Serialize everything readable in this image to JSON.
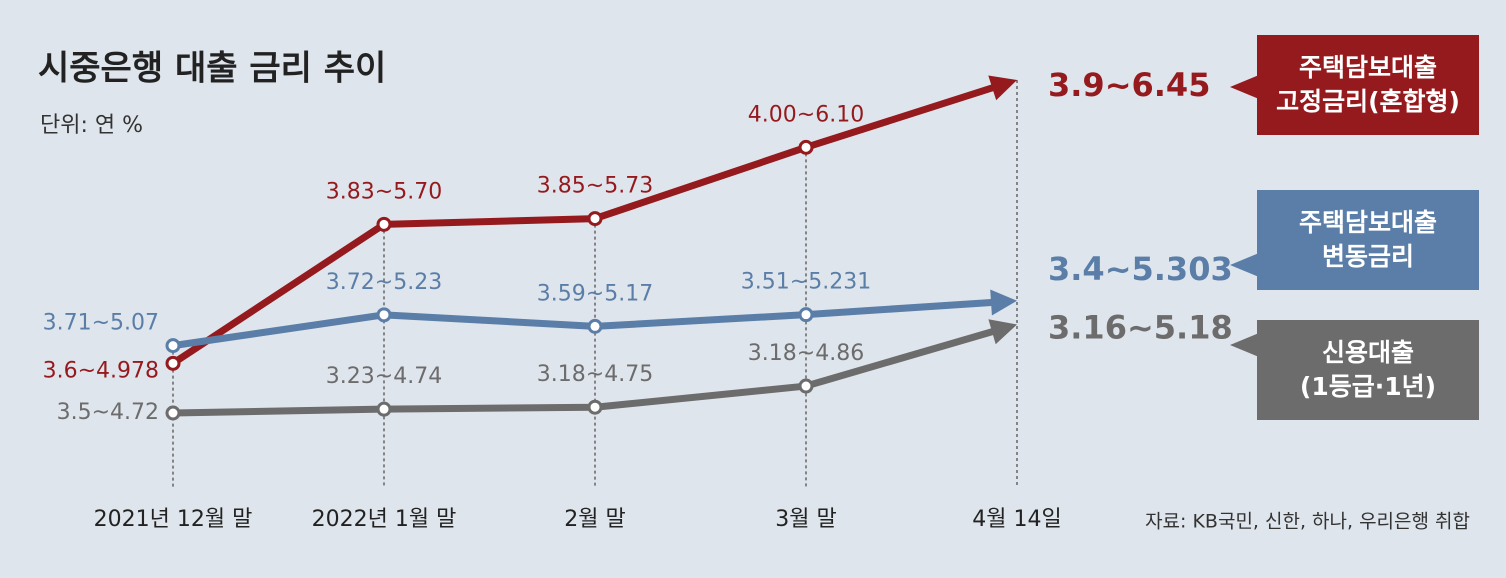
{
  "chart_data": {
    "type": "line",
    "title": "시중은행 대출 금리 추이",
    "subtitle": "단위: 연 %",
    "source": "자료: KB국민, 신한, 하나, 우리은행 취합",
    "categories": [
      "2021년 12월 말",
      "2022년 1월 말",
      "2월 말",
      "3월 말",
      "4월 14일"
    ],
    "series": [
      {
        "name": "주택담보대출\n고정금리(혼합형)",
        "color": "#951a1e",
        "values": [
          4.978,
          5.7,
          5.73,
          6.1,
          6.45
        ],
        "value_labels": [
          "3.6~4.978",
          "3.83~5.70",
          "3.85~5.73",
          "4.00~6.10",
          "3.9~6.45"
        ]
      },
      {
        "name": "주택담보대출\n변동금리",
        "color": "#5a7ea8",
        "values": [
          5.07,
          5.23,
          5.17,
          5.231,
          5.303
        ],
        "value_labels": [
          "3.71~5.07",
          "3.72~5.23",
          "3.59~5.17",
          "3.51~5.231",
          "3.4~5.303"
        ]
      },
      {
        "name": "신용대출\n(1등급·1년)",
        "color": "#6c6c6c",
        "values": [
          4.72,
          4.74,
          4.75,
          4.86,
          5.18
        ],
        "value_labels": [
          "3.5~4.72",
          "3.23~4.74",
          "3.18~4.75",
          "3.18~4.86",
          "3.16~5.18"
        ]
      }
    ]
  }
}
